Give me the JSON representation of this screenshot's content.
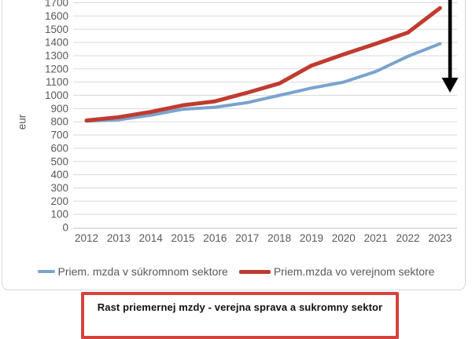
{
  "banner": {
    "title": "Rast priemernej mzdy - verejna sprava a sukromny sektor"
  },
  "chart_data": {
    "type": "line",
    "title": "",
    "ylabel": "eur",
    "xlabel": "",
    "ylim": [
      0,
      1700
    ],
    "ytick_step": 100,
    "grid": true,
    "legend_position": "bottom",
    "categories": [
      "2012",
      "2013",
      "2014",
      "2015",
      "2016",
      "2017",
      "2018",
      "2019",
      "2020",
      "2021",
      "2022",
      "2023"
    ],
    "series": [
      {
        "name": "Priem. mzda v súkromnom sektore",
        "color": "#7aa3ce",
        "stroke_width": 4,
        "values": [
          805,
          815,
          850,
          895,
          910,
          945,
          1000,
          1055,
          1100,
          1180,
          1295,
          1390
        ]
      },
      {
        "name": "Priem.mzda vo verejnom sektore",
        "color": "#bf3b2f",
        "stroke_width": 5,
        "values": [
          810,
          835,
          875,
          925,
          955,
          1020,
          1090,
          1225,
          1310,
          1390,
          1475,
          1660
        ]
      }
    ],
    "annotations": [
      {
        "name": "downward-arrow",
        "color": "#000000",
        "description": "thick black arrow pointing down at right edge of plot"
      }
    ],
    "style": {
      "gridline_color": "#d9d9d9",
      "axis_line_color": "#bfbfbf",
      "tick_label_color": "#595959",
      "tick_font_size": 13.5
    }
  }
}
